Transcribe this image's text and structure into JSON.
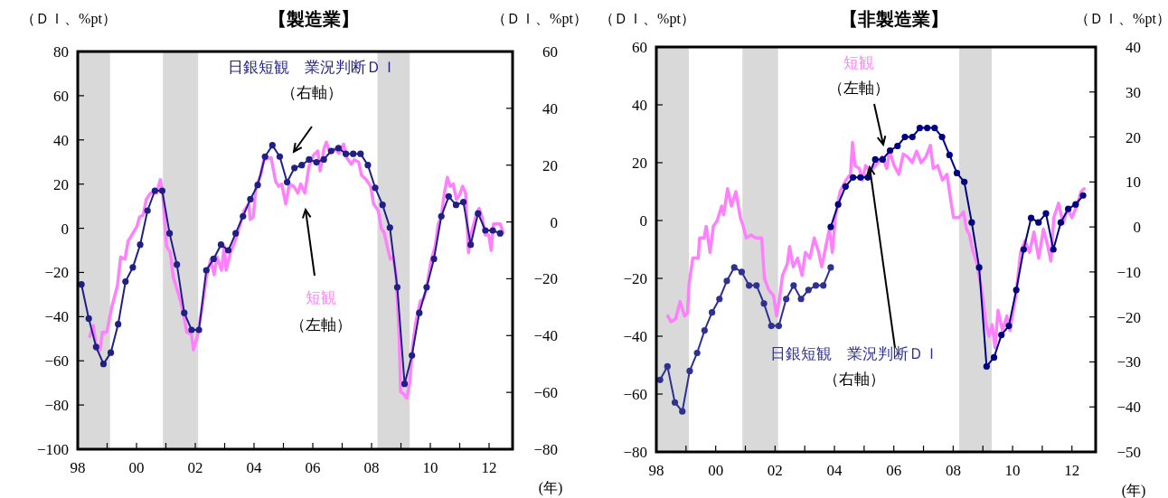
{
  "chart_data": [
    {
      "type": "line",
      "title": "【製造業】",
      "ylabel": "（ＤＩ、%pt）",
      "y2label": "（ＤＩ、%pt）",
      "xlabel": "(年)",
      "xlim": [
        1998,
        2012.8
      ],
      "xticks": [
        {
          "value": 1998,
          "label": "98"
        },
        {
          "value": 1999,
          "label": null
        },
        {
          "value": 2000,
          "label": "00"
        },
        {
          "value": 2001,
          "label": null
        },
        {
          "value": 2002,
          "label": "02"
        },
        {
          "value": 2003,
          "label": null
        },
        {
          "value": 2004,
          "label": "04"
        },
        {
          "value": 2005,
          "label": null
        },
        {
          "value": 2006,
          "label": "06"
        },
        {
          "value": 2007,
          "label": null
        },
        {
          "value": 2008,
          "label": "08"
        },
        {
          "value": 2009,
          "label": null
        },
        {
          "value": 2010,
          "label": "10"
        },
        {
          "value": 2011,
          "label": null
        },
        {
          "value": 2012,
          "label": "12"
        }
      ],
      "ylim": [
        -100,
        80
      ],
      "yticks": [
        -100,
        -80,
        -60,
        -40,
        -20,
        0,
        20,
        40,
        60,
        80
      ],
      "y2lim": [
        -80,
        60
      ],
      "y2ticks": [
        -80,
        -60,
        -40,
        -20,
        0,
        20,
        40,
        60
      ],
      "grid": false,
      "legend": false,
      "bands": [
        {
          "axis": "x",
          "from": 1998,
          "to": 1999.1,
          "color": "#d9d9d9"
        },
        {
          "axis": "x",
          "from": 2000.9,
          "to": 2002.1,
          "color": "#d9d9d9"
        },
        {
          "axis": "x",
          "from": 2008.2,
          "to": 2009.3,
          "color": "#d9d9d9"
        }
      ],
      "series": [
        {
          "name": "短観",
          "color": "#ff80ff",
          "marker": "none",
          "x": [
            1998.41,
            1998.53,
            1998.64,
            1998.76,
            1998.84,
            1998.99,
            1999.15,
            1999.35,
            1999.46,
            1999.61,
            1999.71,
            1999.89,
            2000.02,
            2000.1,
            2000.23,
            2000.33,
            2000.48,
            2000.69,
            2000.81,
            2000.89,
            2001.02,
            2001.15,
            2001.25,
            2001.41,
            2001.56,
            2001.71,
            2001.87,
            2001.94,
            2002.07,
            2002.23,
            2002.38,
            2002.53,
            2002.64,
            2002.74,
            2002.89,
            2002.99,
            2003.05,
            2003.2,
            2003.35,
            2003.51,
            2003.66,
            2003.82,
            2003.87,
            2003.97,
            2004.07,
            2004.23,
            2004.33,
            2004.58,
            2004.74,
            2004.84,
            2004.94,
            2005.08,
            2005.2,
            2005.35,
            2005.49,
            2005.59,
            2005.73,
            2005.87,
            2006.02,
            2006.17,
            2006.25,
            2006.38,
            2006.46,
            2006.59,
            2006.74,
            2006.89,
            2007.05,
            2007.15,
            2007.31,
            2007.41,
            2007.56,
            2007.66,
            2007.82,
            2007.97,
            2008.07,
            2008.23,
            2008.33,
            2008.43,
            2008.53,
            2008.64,
            2008.74,
            2008.84,
            2008.94,
            2008.99,
            2009.09,
            2009.2,
            2009.3,
            2009.4,
            2009.5,
            2009.66,
            2009.76,
            2009.86,
            2010.02,
            2010.17,
            2010.27,
            2010.37,
            2010.48,
            2010.58,
            2010.68,
            2010.78,
            2010.89,
            2010.99,
            2011.1,
            2011.2,
            2011.3,
            2011.4,
            2011.56,
            2011.66,
            2011.76,
            2011.87,
            2011.99,
            2012.07,
            2012.15,
            2012.28,
            2012.38,
            2012.48
          ],
          "values": [
            -49,
            -44,
            -55,
            -55,
            -47,
            -47,
            -36,
            -26,
            -13,
            -14,
            -6,
            -2,
            1,
            5,
            6,
            13,
            16,
            16,
            22,
            16,
            -8,
            -11,
            -22,
            -29,
            -36,
            -47,
            -48,
            -55,
            -49,
            -36,
            -22,
            -14,
            -21,
            -13,
            -19,
            -8,
            -19,
            -11,
            -6,
            1,
            8,
            11,
            4,
            5,
            19,
            24,
            31,
            32,
            21,
            19,
            20,
            11,
            20,
            19,
            16,
            20,
            16,
            28,
            33,
            35,
            26,
            36,
            39,
            34,
            36,
            34,
            38,
            32,
            29,
            31,
            30,
            24,
            22,
            19,
            11,
            8,
            0,
            -2,
            -8,
            -14,
            -13,
            -22,
            -49,
            -74,
            -75,
            -77,
            -70,
            -53,
            -43,
            -33,
            -32,
            -28,
            -15,
            -8,
            2,
            5,
            16,
            23,
            19,
            20,
            13,
            15,
            19,
            16,
            -11,
            -2,
            6,
            9,
            5,
            -3,
            -3,
            -10,
            2,
            2,
            2,
            -2
          ]
        },
        {
          "name": "日銀短観　業況判断ＤＩ",
          "color": "#1f1f85",
          "marker": "circle",
          "axis": "y2",
          "x": [
            1998.125,
            1998.375,
            1998.625,
            1998.875,
            1999.125,
            1999.375,
            1999.625,
            1999.875,
            2000.125,
            2000.375,
            2000.625,
            2000.875,
            2001.125,
            2001.375,
            2001.625,
            2001.875,
            2002.125,
            2002.375,
            2002.625,
            2002.875,
            2003.125,
            2003.375,
            2003.625,
            2003.875,
            2004.125,
            2004.375,
            2004.625,
            2004.875,
            2005.125,
            2005.375,
            2005.625,
            2005.875,
            2006.125,
            2006.375,
            2006.625,
            2006.875,
            2007.125,
            2007.375,
            2007.625,
            2007.875,
            2008.125,
            2008.375,
            2008.625,
            2008.875,
            2009.125,
            2009.375,
            2009.625,
            2009.875,
            2010.125,
            2010.375,
            2010.625,
            2010.875,
            2011.125,
            2011.375,
            2011.625,
            2011.875,
            2012.125,
            2012.375
          ],
          "values": [
            -22,
            -34,
            -44,
            -50,
            -46,
            -36,
            -21,
            -16,
            -8,
            4,
            11,
            11,
            -4,
            -15,
            -32,
            -38,
            -38,
            -17,
            -13,
            -8,
            -10,
            -4,
            2,
            8,
            13,
            23,
            27,
            23,
            14,
            19,
            20,
            22,
            21,
            22,
            25,
            26,
            24,
            24,
            24,
            20,
            12,
            6,
            -2,
            -23,
            -57,
            -47,
            -32,
            -23,
            -13,
            2,
            9,
            6,
            7,
            -8,
            3,
            -3,
            -3,
            -4
          ]
        }
      ],
      "annotations": [
        "（右軸）",
        "（左軸）"
      ]
    },
    {
      "type": "line",
      "title": "【非製造業】",
      "ylabel": "（ＤＩ、%pt）",
      "y2label": "（ＤＩ、%pt）",
      "xlabel": "(年)",
      "xlim": [
        1998,
        2012.8
      ],
      "xticks": [
        {
          "value": 1998,
          "label": "98"
        },
        {
          "value": 1999,
          "label": null
        },
        {
          "value": 2000,
          "label": "00"
        },
        {
          "value": 2001,
          "label": null
        },
        {
          "value": 2002,
          "label": "02"
        },
        {
          "value": 2003,
          "label": null
        },
        {
          "value": 2004,
          "label": "04"
        },
        {
          "value": 2005,
          "label": null
        },
        {
          "value": 2006,
          "label": "06"
        },
        {
          "value": 2007,
          "label": null
        },
        {
          "value": 2008,
          "label": "08"
        },
        {
          "value": 2009,
          "label": null
        },
        {
          "value": 2010,
          "label": "10"
        },
        {
          "value": 2011,
          "label": null
        },
        {
          "value": 2012,
          "label": "12"
        }
      ],
      "ylim": [
        -80,
        60
      ],
      "yticks": [
        -80,
        -60,
        -40,
        -20,
        0,
        20,
        40,
        60
      ],
      "y2lim": [
        -50,
        40
      ],
      "y2ticks": [
        -50,
        -40,
        -30,
        -20,
        -10,
        0,
        10,
        20,
        30,
        40
      ],
      "grid": false,
      "legend": false,
      "bands": [
        {
          "axis": "x",
          "from": 1998,
          "to": 1999.1,
          "color": "#d9d9d9"
        },
        {
          "axis": "x",
          "from": 2000.9,
          "to": 2002.1,
          "color": "#d9d9d9"
        },
        {
          "axis": "x",
          "from": 2008.2,
          "to": 2009.3,
          "color": "#d9d9d9"
        }
      ],
      "series": [
        {
          "name": "短観",
          "color": "#ff80ff",
          "marker": "none",
          "x": [
            1998.39,
            1998.49,
            1998.65,
            1998.8,
            1998.95,
            1999.05,
            1999.1,
            1999.23,
            1999.41,
            1999.46,
            1999.61,
            1999.68,
            1999.81,
            1999.92,
            2000.05,
            2000.2,
            2000.27,
            2000.4,
            2000.53,
            2000.68,
            2000.83,
            2000.93,
            2001.03,
            2001.19,
            2001.34,
            2001.55,
            2001.64,
            2001.79,
            2001.95,
            2002.05,
            2002.15,
            2002.25,
            2002.41,
            2002.49,
            2002.61,
            2002.76,
            2002.91,
            2003.02,
            2003.17,
            2003.32,
            2003.47,
            2003.57,
            2003.67,
            2003.83,
            2003.93,
            2004.03,
            2004.19,
            2004.39,
            2004.54,
            2004.61,
            2004.69,
            2004.84,
            2004.94,
            2005.05,
            2005.2,
            2005.3,
            2005.46,
            2005.61,
            2005.76,
            2005.86,
            2006.01,
            2006.17,
            2006.32,
            2006.47,
            2006.62,
            2006.77,
            2006.92,
            2007.08,
            2007.23,
            2007.33,
            2007.48,
            2007.64,
            2007.79,
            2007.89,
            2008.01,
            2008.19,
            2008.35,
            2008.45,
            2008.55,
            2008.65,
            2008.8,
            2008.96,
            2009.11,
            2009.21,
            2009.31,
            2009.41,
            2009.51,
            2009.66,
            2009.81,
            2009.91,
            2010.11,
            2010.27,
            2010.42,
            2010.57,
            2010.72,
            2010.88,
            2011.04,
            2011.19,
            2011.29,
            2011.39,
            2011.55,
            2011.7,
            2011.85,
            2012.0,
            2012.16,
            2012.31,
            2012.41
          ],
          "values": [
            -33,
            -35,
            -34,
            -28,
            -33,
            -32,
            -22,
            -13,
            -13,
            -6,
            -6,
            -2,
            -11,
            -2,
            0,
            5,
            2,
            11,
            5,
            10,
            1,
            -2,
            -6,
            -5,
            -6,
            -6,
            -20,
            -24,
            -26,
            -33,
            -27,
            -19,
            -15,
            -9,
            -16,
            -13,
            -19,
            -11,
            -13,
            -6,
            -11,
            -16,
            -11,
            -3,
            -11,
            1,
            10,
            14,
            16,
            27,
            19,
            18,
            14,
            19,
            17,
            18,
            20,
            22,
            18,
            24,
            19,
            16,
            23,
            22,
            20,
            24,
            20,
            22,
            26,
            18,
            19,
            14,
            16,
            9,
            1,
            1,
            3,
            -3,
            -5,
            -10,
            -15,
            -24,
            -36,
            -40,
            -36,
            -44,
            -31,
            -38,
            -33,
            -38,
            -26,
            -11,
            -7,
            -11,
            -4,
            -13,
            -3,
            -9,
            -14,
            1,
            6,
            -1,
            4,
            1,
            5,
            10,
            11
          ]
        },
        {
          "name": "日銀短観　業況判断ＤＩ",
          "color": "#2e3192",
          "marker": "circle",
          "axis": "y2",
          "x": [
            1998.125,
            1998.375,
            1998.625,
            1998.875,
            1999.125,
            1999.375,
            1999.625,
            1999.875,
            2000.125,
            2000.375,
            2000.625,
            2000.875,
            2001.125,
            2001.375,
            2001.625,
            2001.875,
            2002.125,
            2002.375,
            2002.625,
            2002.875,
            2003.125,
            2003.375,
            2003.625,
            2003.875
          ],
          "values": [
            -34,
            -31,
            -39,
            -41,
            -32,
            -28,
            -23,
            -19,
            -16,
            -12,
            -9,
            -10,
            -13,
            -13,
            -17,
            -22,
            -22,
            -16,
            -13,
            -16,
            -14,
            -13,
            -13,
            -9
          ]
        },
        {
          "color": "#000080",
          "marker": "circle",
          "axis": "y2",
          "x": [
            2003.875,
            2004.125,
            2004.375,
            2004.625,
            2004.875,
            2005.125,
            2005.375,
            2005.625,
            2005.875,
            2006.125,
            2006.375,
            2006.625,
            2006.875,
            2007.125,
            2007.375,
            2007.625,
            2007.875,
            2008.125,
            2008.375,
            2008.625,
            2008.875,
            2009.125,
            2009.375,
            2009.625,
            2009.875,
            2010.125,
            2010.375,
            2010.625,
            2010.875,
            2011.125,
            2011.375,
            2011.625,
            2011.875,
            2012.125,
            2012.375
          ],
          "values": [
            0,
            5,
            9,
            11,
            11,
            11,
            15,
            15,
            17,
            18,
            20,
            20,
            22,
            22,
            22,
            20,
            16,
            12,
            10,
            1,
            -9,
            -31,
            -29,
            -24,
            -22,
            -14,
            -5,
            2,
            1,
            3,
            -5,
            1,
            4,
            5,
            7
          ]
        }
      ],
      "annotations": [
        "（左軸）",
        "（右軸）"
      ]
    }
  ]
}
